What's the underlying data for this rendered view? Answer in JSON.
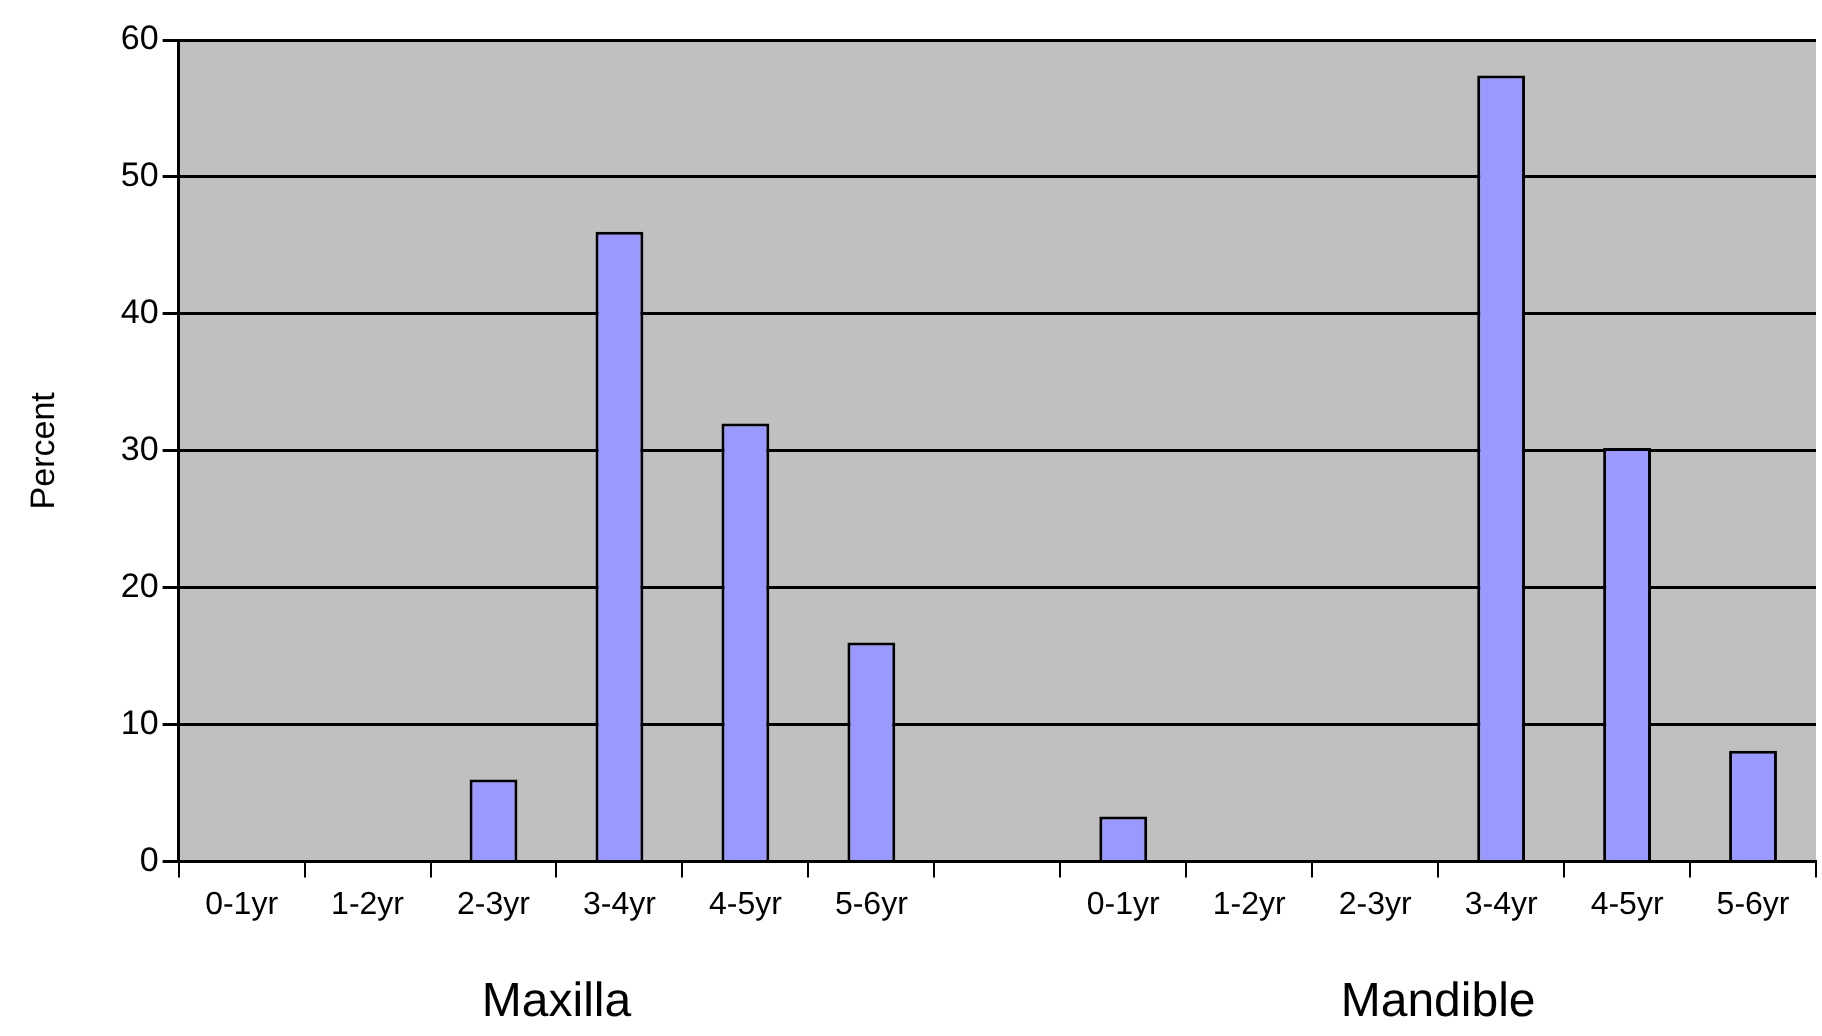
{
  "chart_data": {
    "type": "bar",
    "ylabel": "Percent",
    "categories": [
      "0-1yr",
      "1-2yr",
      "2-3yr",
      "3-4yr",
      "4-5yr",
      "5-6yr",
      null,
      "0-1yr",
      "1-2yr",
      "2-3yr",
      "3-4yr",
      "4-5yr",
      "5-6yr"
    ],
    "values": [
      0,
      0,
      6,
      46,
      32,
      16,
      null,
      3.3,
      0,
      0,
      57.4,
      30.2,
      8.1
    ],
    "color": "#9999ff",
    "ylim": [
      0,
      60
    ],
    "yticks": [
      0,
      10,
      20,
      30,
      40,
      50,
      60
    ],
    "grid": "y",
    "annotations": [
      "Maxilla",
      "Mandible"
    ]
  }
}
